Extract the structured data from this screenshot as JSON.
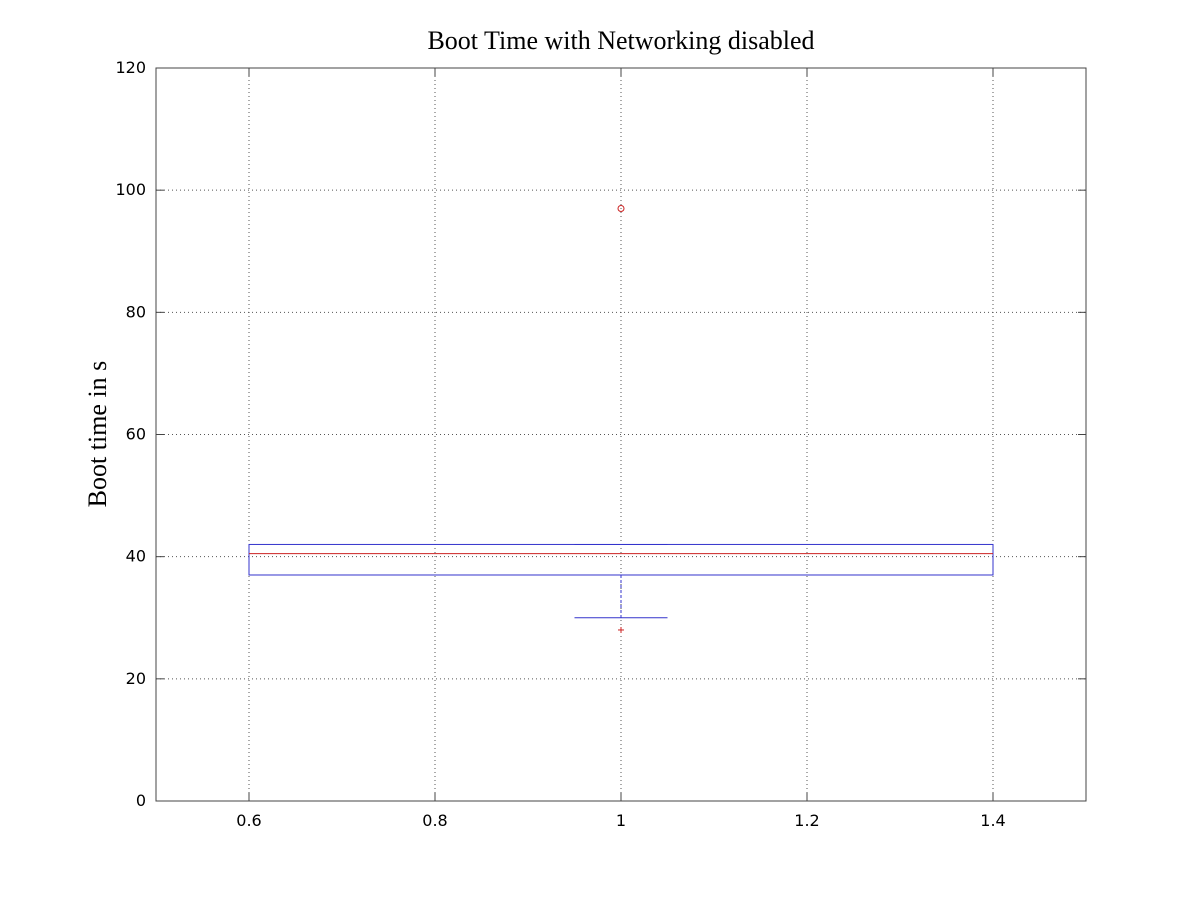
{
  "chart_data": {
    "type": "boxplot",
    "title": "Boot Time with Networking disabled",
    "xlabel": "",
    "ylabel": "Boot time in s",
    "xlim": [
      0.5,
      1.5
    ],
    "ylim": [
      0,
      120
    ],
    "x_ticks": [
      0.6,
      0.8,
      1.0,
      1.2,
      1.4
    ],
    "x_tick_labels": [
      "0.6",
      "0.8",
      "1",
      "1.2",
      "1.4"
    ],
    "y_ticks": [
      0,
      20,
      40,
      60,
      80,
      100,
      120
    ],
    "y_tick_labels": [
      "0",
      "20",
      "40",
      "60",
      "80",
      "100",
      "120"
    ],
    "grid": true,
    "box": {
      "position": 1.0,
      "box_left": 0.6,
      "box_right": 1.4,
      "q1": 37,
      "median": 40.5,
      "q3": 42,
      "whisker_low": 30,
      "whisker_high": 42,
      "cap_halfwidth": 0.05
    },
    "outliers": [
      {
        "x": 1.0,
        "y": 97,
        "marker": "circle"
      },
      {
        "x": 1.0,
        "y": 28,
        "marker": "plus"
      }
    ],
    "colors": {
      "box": "#3333cc",
      "median": "#cc2222",
      "outlier": "#cc2222"
    }
  }
}
